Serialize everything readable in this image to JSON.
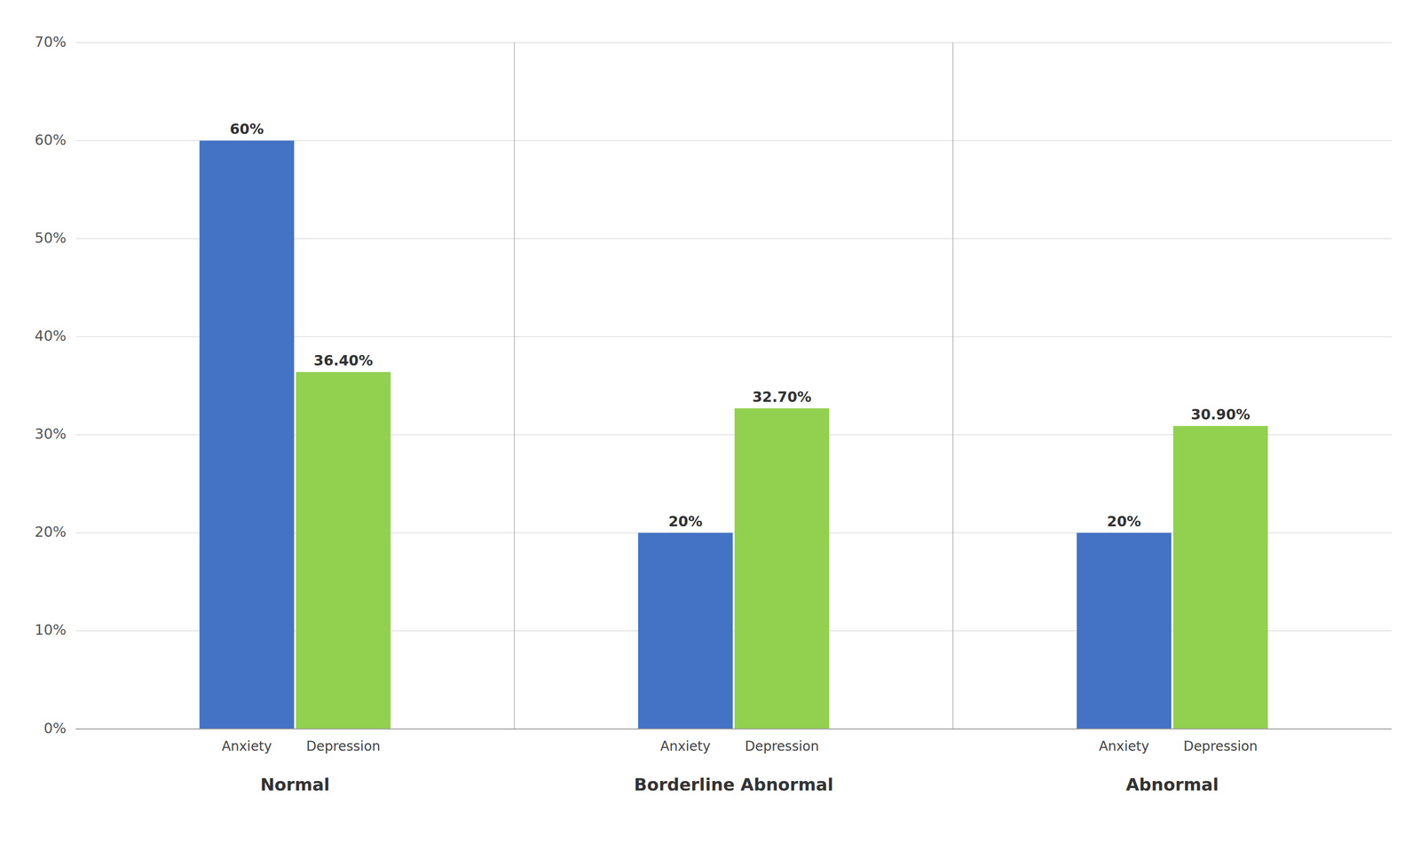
{
  "chart_data": {
    "type": "bar",
    "categories": [
      "Normal",
      "Borderline Abnormal",
      "Abnormal"
    ],
    "series": [
      {
        "name": "Anxiety",
        "color": "#4472C4",
        "values": [
          60.0,
          20.0,
          20.0
        ],
        "value_labels": [
          "60%",
          "20%",
          "20%"
        ]
      },
      {
        "name": "Depression",
        "color": "#92D050",
        "values": [
          36.4,
          32.7,
          30.9
        ],
        "value_labels": [
          "36.40%",
          "32.70%",
          "30.90%"
        ]
      }
    ],
    "ylim": [
      0,
      70
    ],
    "yticks": [
      {
        "value": 0,
        "label": "0%"
      },
      {
        "value": 10,
        "label": "10%"
      },
      {
        "value": 20,
        "label": "20%"
      },
      {
        "value": 30,
        "label": "30%"
      },
      {
        "value": 40,
        "label": "40%"
      },
      {
        "value": 50,
        "label": "50%"
      },
      {
        "value": 60,
        "label": "60%"
      },
      {
        "value": 70,
        "label": "70%"
      }
    ],
    "grid": true,
    "data_labels": true
  }
}
